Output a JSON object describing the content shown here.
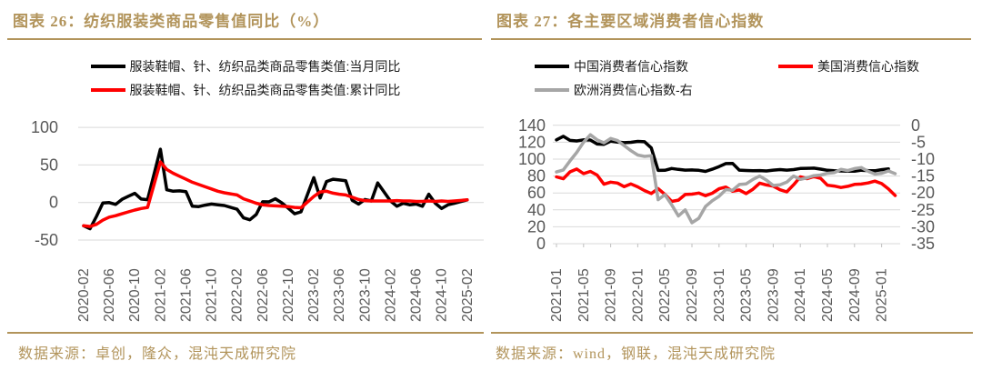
{
  "colors": {
    "accent_gold": "#B2945B",
    "line_black": "#000000",
    "line_red": "#FF0000",
    "line_gray": "#A6A6A6",
    "gridline": "#D9D9D9",
    "tick_mark": "#BFBFBF",
    "axis_text": "#595959",
    "legend_text": "#1A1A1A"
  },
  "charts": [
    {
      "title": "图表 26：纺织服装类商品零售值同比（%）",
      "source": "数据来源：卓创，隆众，混沌天成研究院",
      "legend": [
        {
          "label": "服装鞋帽、针、纺织品类商品零售类值:当月同比",
          "color": "#000000"
        },
        {
          "label": "服装鞋帽、针、纺织品类商品零售类值:累计同比",
          "color": "#FF0000"
        }
      ],
      "chart_data": {
        "type": "line",
        "start_month": "2020-02",
        "x_tick_labels": [
          "2020-02",
          "2020-06",
          "2020-10",
          "2021-02",
          "2021-06",
          "2021-10",
          "2022-02",
          "2022-06",
          "2022-10",
          "2023-02",
          "2023-06",
          "2023-10",
          "2024-02",
          "2024-06",
          "2024-10",
          "2025-02"
        ],
        "y_axis": {
          "ticks": [
            100,
            50,
            0,
            -50
          ],
          "min": -50,
          "max": 100
        },
        "grid": "horizontal",
        "legend_position": "top",
        "series": [
          {
            "name": "服装鞋帽、针、纺织品类商品零售类值:当月同比",
            "color": "#000000",
            "values": [
              -31,
              -35,
              -18.5,
              -0.6,
              -0.1,
              -2.5,
              4.2,
              8.3,
              12.2,
              4.6,
              3.8,
              null,
              71,
              17,
              15,
              15.5,
              14.5,
              -5,
              -5.5,
              -3.5,
              -2,
              -3,
              -4,
              null,
              -9,
              -20.5,
              -23,
              -16,
              1,
              0.8,
              5,
              -0.5,
              -7.5,
              -15,
              -12.5,
              null,
              33,
              6,
              28,
              31,
              30,
              29,
              3,
              -2,
              4,
              2,
              26,
              null,
              2,
              -5,
              -1,
              -3,
              -2,
              -5,
              11,
              -1,
              -8,
              -3,
              -1,
              null,
              3.5
            ]
          },
          {
            "name": "服装鞋帽、针、纺织品类商品零售类值:累计同比",
            "color": "#FF0000",
            "values": [
              -31,
              -32,
              -29,
              -23.5,
              -19.5,
              -17.5,
              -15,
              -12.5,
              -10,
              -8,
              -6.5,
              null,
              54,
              44,
              39,
              35,
              31,
              27,
              24,
              21,
              18,
              15,
              13,
              null,
              10,
              5,
              2,
              -1,
              -3,
              -4,
              -4.5,
              -5,
              -5.5,
              -6.5,
              -7,
              null,
              8,
              14,
              15,
              12.5,
              11,
              10,
              7,
              4,
              2.5,
              2,
              2,
              null,
              2,
              2.5,
              2,
              2,
              1.5,
              1.5,
              2,
              1.5,
              2,
              1.5,
              2,
              null,
              3.5
            ]
          }
        ]
      }
    },
    {
      "title": "图表 27：各主要区域消费者信心指数",
      "source": "数据来源：wind，钢联，混沌天成研究院",
      "legend": [
        {
          "label": "中国消费者信心指数",
          "color": "#000000"
        },
        {
          "label": "美国消费信心指数",
          "color": "#FF0000"
        },
        {
          "label": "欧洲消费信心指数-右",
          "color": "#A6A6A6"
        }
      ],
      "chart_data": {
        "type": "line",
        "start_month": "2021-01",
        "x_tick_labels": [
          "2021-01",
          "2021-05",
          "2021-09",
          "2022-01",
          "2022-05",
          "2022-09",
          "2023-01",
          "2023-05",
          "2023-09",
          "2024-01",
          "2024-05",
          "2024-09",
          "2025-01"
        ],
        "y_axis_left": {
          "ticks": [
            140,
            120,
            100,
            80,
            60,
            40,
            20,
            0
          ],
          "min": 0,
          "max": 140
        },
        "y_axis_right": {
          "ticks": [
            0,
            -5,
            -10,
            -15,
            -20,
            -25,
            -30,
            -35
          ],
          "min": -35,
          "max": 0
        },
        "grid": "horizontal",
        "legend_position": "top",
        "series": [
          {
            "name": "中国消费者信心指数",
            "color": "#000000",
            "axis": "left",
            "values": [
              122.8,
              127,
              122.2,
              121.5,
              122.8,
              122.6,
              117.8,
              117.5,
              121.2,
              120.1,
              119.5,
              119.9,
              121,
              120.5,
              113.2,
              86.7,
              86.8,
              88.9,
              87.9,
              87,
              87.2,
              86.8,
              85.5,
              88.1,
              91.2,
              94.7,
              94.9,
              87,
              86.6,
              86.2,
              86.5,
              86,
              87,
              87.6,
              87,
              87.6,
              88.9,
              89.1,
              89.4,
              88.2,
              86.8,
              86.2,
              86,
              85.8,
              85.7,
              86.9,
              86.4,
              86.2,
              87.5,
              88.4,
              null
            ]
          },
          {
            "name": "美国消费信心指数",
            "color": "#FF0000",
            "axis": "left",
            "values": [
              79,
              76.8,
              84.9,
              88.3,
              82.9,
              85.5,
              81.2,
              70.3,
              72.8,
              71.7,
              67.4,
              70.6,
              67.2,
              62.8,
              59.4,
              65.2,
              58.4,
              50,
              51.5,
              58.2,
              58.6,
              59.9,
              56.8,
              59.7,
              64.9,
              67,
              62,
              63.5,
              59.2,
              64.4,
              71.6,
              69.5,
              68.1,
              63.8,
              61.3,
              69.7,
              79,
              76.9,
              79.4,
              77.2,
              69.1,
              68.2,
              66.4,
              67.9,
              70.1,
              70.5,
              71.8,
              74,
              71.1,
              64.7,
              57
            ]
          },
          {
            "name": "欧洲消费信心指数-右",
            "color": "#A6A6A6",
            "axis": "right",
            "values": [
              -13.8,
              -13.2,
              -10.5,
              -8,
              -5,
              -2.8,
              -4.3,
              -5.2,
              -3.9,
              -4.5,
              -6,
              -7.5,
              -8.8,
              -9.2,
              -9,
              -22,
              -20.5,
              -23.5,
              -26.8,
              -25,
              -28.8,
              -27.5,
              -24,
              -22.3,
              -21,
              -19,
              -19.2,
              -17.5,
              -17.3,
              -16,
              -15,
              -16.2,
              -17.8,
              -17.6,
              -16.8,
              -15,
              -16,
              -15.5,
              -14.9,
              -14.7,
              -14.2,
              -14,
              -13,
              -13.4,
              -12.8,
              -12.5,
              -13.6,
              -14.4,
              -14.2,
              -13.5,
              -14.3
            ]
          }
        ]
      }
    }
  ]
}
